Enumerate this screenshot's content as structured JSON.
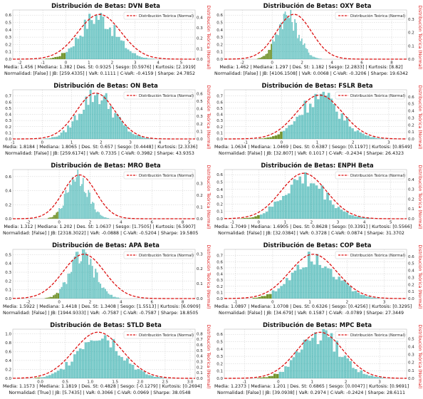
{
  "legend_label": "Distribución Teórica (Normal)",
  "right_axis_label": "Distribución Teórica (Normal)",
  "colors": {
    "hist": "#20a7a5",
    "hist_neg": "#6b8e23",
    "curve": "#dd1111",
    "grid": "#cccccc",
    "plot_bg": "#ffffff"
  },
  "chart_data": [
    {
      "type": "bar",
      "title": "Distribución de Betas: DVN Beta",
      "x_ticks": [
        -2,
        -1,
        0,
        1,
        2,
        3,
        4,
        5
      ],
      "xlim": [
        -2.3,
        5.6
      ],
      "y_ticks": [
        0.0,
        0.1,
        0.2,
        0.3,
        0.4,
        0.5,
        0.6
      ],
      "ylim": [
        0,
        0.67
      ],
      "y2_ticks": [
        0.0,
        0.1,
        0.2,
        0.3,
        0.4
      ],
      "y2lim": [
        0,
        0.47
      ],
      "mean": 1.456,
      "std": 0.9325,
      "hist_peak": 0.6,
      "hist_center": 1.35,
      "hist_spread": 0.8,
      "stats_line1": "Media: 1.456 | Mediana: 1.382 | Des. St: 0.9325 | Sesgo: [0.5976] | Kurtosis: [2.1919]",
      "stats_line2": "Normalidad: [False] | JB: [259.4335] | VaR: 0.1111 | C-VaR: -0.4159 | Sharpe: 24.7852"
    },
    {
      "type": "bar",
      "title": "Distribución de Betas: OXY Beta",
      "x_ticks": [
        -2,
        0,
        2,
        4,
        6,
        8
      ],
      "xlim": [
        -3.2,
        9
      ],
      "y_ticks": [
        0.0,
        0.1,
        0.2,
        0.3,
        0.4,
        0.5,
        0.6
      ],
      "ylim": [
        0,
        0.67
      ],
      "y2_ticks": [
        0.0,
        0.1,
        0.2,
        0.3
      ],
      "y2lim": [
        0,
        0.37
      ],
      "mean": 1.462,
      "std": 1.182,
      "hist_peak": 0.62,
      "hist_center": 1.0,
      "hist_spread": 0.75,
      "stats_line1": "Media: 1.462 | Mediana: 1.297 | Des. St: 1.182 | Sesgo: [2.2833] | Kurtosis: [8.82]",
      "stats_line2": "Normalidad: [False] | JB: [4106.1508] | VaR: 0.0068 | C-VaR: -0.3206 | Sharpe: 19.6342"
    },
    {
      "type": "bar",
      "title": "Distribución de Betas: ON Beta",
      "x_ticks": [
        -1,
        0,
        1,
        2,
        3,
        4,
        5
      ],
      "xlim": [
        -1.0,
        5.2
      ],
      "y_ticks": [
        0.0,
        0.1,
        0.2,
        0.3,
        0.4,
        0.5,
        0.6,
        0.7
      ],
      "ylim": [
        0,
        0.8
      ],
      "y2_ticks": [
        0.0,
        0.1,
        0.2,
        0.3,
        0.4,
        0.5,
        0.6
      ],
      "y2lim": [
        0,
        0.65
      ],
      "mean": 1.8184,
      "std": 0.657,
      "hist_peak": 0.75,
      "hist_center": 1.82,
      "hist_spread": 0.62,
      "stats_line1": "Media: 1.8184 | Mediana: 1.8065 | Des. St: 0.657 | Sesgo: [0.4448] | Kurtosis: [2.3336]",
      "stats_line2": "Normalidad: [False] | JB: [259.6174] | VaR: 0.7335 | C-VaR: 0.3982 | Sharpe: 43.9353"
    },
    {
      "type": "bar",
      "title": "Distribución de Betas: FSLR Beta",
      "x_ticks": [
        -1,
        0,
        1,
        2,
        3
      ],
      "xlim": [
        -1.6,
        3.5
      ],
      "y_ticks": [
        0.0,
        0.1,
        0.2,
        0.3,
        0.4,
        0.5,
        0.6,
        0.7
      ],
      "ylim": [
        0,
        0.8
      ],
      "y2_ticks": [
        0.0,
        0.1,
        0.2,
        0.3,
        0.4,
        0.5,
        0.6
      ],
      "y2lim": [
        0,
        0.7
      ],
      "mean": 1.0634,
      "std": 0.6387,
      "hist_peak": 0.7,
      "hist_center": 1.05,
      "hist_spread": 0.6,
      "stats_line1": "Media: 1.0634 | Mediana: 1.0469 | Des. St: 0.6387 | Sesgo: [0.1197] | Kurtosis: [0.8549]",
      "stats_line2": "Normalidad: [False] | JB: [32.807] | VaR: 0.1017 | C-VaR: -0.2434 | Sharpe: 26.4323"
    },
    {
      "type": "bar",
      "title": "Distribución de Betas: MRO Beta",
      "x_ticks": [
        -2,
        0,
        2,
        4,
        6,
        8
      ],
      "xlim": [
        -3.0,
        8.8
      ],
      "y_ticks": [
        0.0,
        0.2,
        0.4,
        0.6
      ],
      "ylim": [
        0,
        0.7
      ],
      "y2_ticks": [
        0.0,
        0.1,
        0.2,
        0.3
      ],
      "y2lim": [
        0,
        0.42
      ],
      "mean": 1.312,
      "std": 1.0637,
      "hist_peak": 0.66,
      "hist_center": 1.15,
      "hist_spread": 0.7,
      "stats_line1": "Media: 1.312 | Mediana: 1.202 | Des. St: 1.0637 | Sesgo: [1.7505] | Kurtosis: [6.5907]",
      "stats_line2": "Normalidad: [False] | JB: [2318.3022] | VaR: -0.0888 | C-VaR: -0.5204 | Sharpe: 19.5805"
    },
    {
      "type": "bar",
      "title": "Distribución de Betas: ENPH Beta",
      "x_ticks": [
        -1,
        0,
        1,
        2,
        3,
        4,
        5
      ],
      "xlim": [
        -1.3,
        5.6
      ],
      "y_ticks": [
        0.0,
        0.1,
        0.2,
        0.3,
        0.4,
        0.5,
        0.6
      ],
      "ylim": [
        0,
        0.67
      ],
      "y2_ticks": [
        0.0,
        0.1,
        0.2,
        0.3,
        0.4
      ],
      "y2lim": [
        0,
        0.5
      ],
      "mean": 1.7049,
      "std": 0.8628,
      "hist_peak": 0.55,
      "hist_center": 1.7,
      "hist_spread": 0.85,
      "stats_line1": "Media: 1.7049 | Mediana: 1.6905 | Des. St: 0.8628 | Sesgo: [0.3391] | Kurtosis: [0.5566]",
      "stats_line2": "Normalidad: [False] | JB: [32.0384] | VaR: 0.3728 | C-VaR: 0.0874 | Sharpe: 31.3702"
    },
    {
      "type": "bar",
      "title": "Distribución de Betas: APA Beta",
      "x_ticks": [
        -2,
        0,
        2,
        4,
        6,
        8
      ],
      "xlim": [
        -3.0,
        8.8
      ],
      "y_ticks": [
        0.0,
        0.1,
        0.2,
        0.3,
        0.4,
        0.5
      ],
      "ylim": [
        0,
        0.56
      ],
      "y2_ticks": [
        0.0,
        0.1,
        0.2,
        0.3
      ],
      "y2lim": [
        0,
        0.33
      ],
      "mean": 1.5922,
      "std": 1.3408,
      "hist_peak": 0.5,
      "hist_center": 1.45,
      "hist_spread": 0.85,
      "stats_line1": "Media: 1.5922 | Mediana: 1.4418 | Des. St: 1.3408 | Sesgo: [1.5513] | Kurtosis: [6.0909]",
      "stats_line2": "Normalidad: [False] | JB: [1944.9333] | VaR: -0.7587 | C-VaR: -0.7587 | Sharpe: 18.8505"
    },
    {
      "type": "bar",
      "title": "Distribución de Betas: COP Beta",
      "x_ticks": [
        -1,
        0,
        1,
        2,
        3
      ],
      "xlim": [
        -1.3,
        3.6
      ],
      "y_ticks": [
        0.0,
        0.1,
        0.2,
        0.3,
        0.4,
        0.5,
        0.6,
        0.7
      ],
      "ylim": [
        0,
        0.8
      ],
      "y2_ticks": [
        0.0,
        0.1,
        0.2,
        0.3,
        0.4,
        0.5,
        0.6
      ],
      "y2lim": [
        0,
        0.7
      ],
      "mean": 1.0897,
      "std": 0.6326,
      "hist_peak": 0.73,
      "hist_center": 1.07,
      "hist_spread": 0.6,
      "stats_line1": "Media: 1.0897 | Mediana: 1.0708 | Des. St: 0.6326 | Sesgo: [0.4256] | Kurtosis: [0.3295]",
      "stats_line2": "Normalidad: [False] | JB: [34.679] | VaR: 0.1587 | C-VaR: -0.0789 | Sharpe: 27.3449"
    },
    {
      "type": "bar",
      "title": "Distribución de Betas: STLD Beta",
      "x_ticks": [
        0.0,
        0.5,
        1.0,
        1.5,
        2.0,
        2.5,
        3.0
      ],
      "xlim": [
        -0.55,
        3.1
      ],
      "y_ticks": [
        0.0,
        0.2,
        0.4,
        0.6,
        0.8,
        1.0
      ],
      "ylim": [
        0,
        1.1
      ],
      "y2_ticks": [
        0.0,
        0.1,
        0.2,
        0.3,
        0.4,
        0.5,
        0.6,
        0.7,
        0.8
      ],
      "y2lim": [
        0,
        0.88
      ],
      "mean": 1.1573,
      "std": 0.4828,
      "hist_peak": 1.05,
      "hist_center": 1.15,
      "hist_spread": 0.45,
      "stats_line1": "Media: 1.1573 | Mediana: 1.1819 | Des. St: 0.4828 | Sesgo: [-0.1279] | Kurtosis: [0.2694]",
      "stats_line2": "Normalidad: [True] | JB: [5.7435] | VaR: 0.3066 | C-VaR: 0.0969 | Sharpe: 38.0548"
    },
    {
      "type": "bar",
      "title": "Distribución de Betas: MPC Beta",
      "x_ticks": [
        -1,
        0,
        1,
        2,
        3
      ],
      "xlim": [
        -1.6,
        3.8
      ],
      "y_ticks": [
        0.0,
        0.1,
        0.2,
        0.3,
        0.4,
        0.5,
        0.6
      ],
      "ylim": [
        0,
        0.67
      ],
      "y2_ticks": [
        0.0,
        0.1,
        0.2,
        0.3,
        0.4,
        0.5
      ],
      "y2lim": [
        0,
        0.62
      ],
      "mean": 1.2373,
      "std": 0.6865,
      "hist_peak": 0.6,
      "hist_center": 1.2,
      "hist_spread": 0.65,
      "stats_line1": "Media: 1.2373 | Mediana: 1.201 | Des. St: 0.6865 | Sesgo: [0.0047] | Kurtosis: [0.9691]",
      "stats_line2": "Normalidad: [False] | JB: [39.0938] | VaR: 0.2974 | C-VaR: -0.2424 | Sharpe: 28.6111"
    }
  ]
}
